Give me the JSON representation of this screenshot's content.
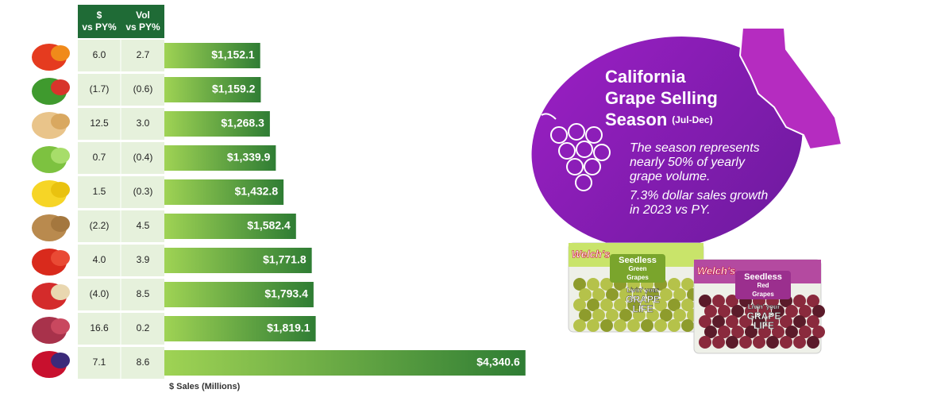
{
  "chart_data": {
    "type": "bar",
    "orientation": "horizontal",
    "categories": [
      null,
      null,
      null,
      null,
      null,
      null,
      null,
      null,
      null,
      null
    ],
    "values": [
      1152.1,
      1159.2,
      1268.3,
      1339.9,
      1432.8,
      1582.4,
      1771.8,
      1793.4,
      1819.1,
      4340.6
    ],
    "value_labels": [
      "$1,152.1",
      "$1,159.2",
      "$1,268.3",
      "$1,339.9",
      "$1,432.8",
      "$1,582.4",
      "$1,771.8",
      "$1,793.4",
      "$1,819.1",
      "$4,340.6"
    ],
    "xlabel": "$ Sales (Millions)",
    "xlim": [
      0,
      4400
    ],
    "color": "#4f9a3a"
  },
  "table": {
    "columns": [
      [
        "$",
        "vs PY%"
      ],
      [
        "Vol",
        "vs PY%"
      ]
    ],
    "rows": [
      [
        "6.0",
        "2.7"
      ],
      [
        "(1.7)",
        "(0.6)"
      ],
      [
        "12.5",
        "3.0"
      ],
      [
        "0.7",
        "(0.4)"
      ],
      [
        "1.5",
        "(0.3)"
      ],
      [
        "(2.2)",
        "4.5"
      ],
      [
        "4.0",
        "3.9"
      ],
      [
        "(4.0)",
        "8.5"
      ],
      [
        "16.6",
        "0.2"
      ],
      [
        "7.1",
        "8.6"
      ]
    ]
  },
  "callout": {
    "title": [
      "California",
      "Grape Selling",
      "Season"
    ],
    "title_note": "(Jul-Dec)",
    "body": [
      [
        "The season represents",
        "nearly 50% of yearly",
        "grape volume."
      ],
      [
        "7.3% dollar sales growth",
        "in 2023 vs PY."
      ]
    ]
  },
  "products": [
    {
      "brand": "Welch's",
      "name": [
        "Seedless",
        "Green",
        "Grapes"
      ],
      "tagline": [
        "Livin' your",
        "GRAPE",
        "LIFE"
      ]
    },
    {
      "brand": "Welch's",
      "name": [
        "Seedless",
        "Red",
        "Grapes"
      ],
      "tagline": [
        "Livin' your",
        "GRAPE",
        "LIFE"
      ]
    }
  ]
}
